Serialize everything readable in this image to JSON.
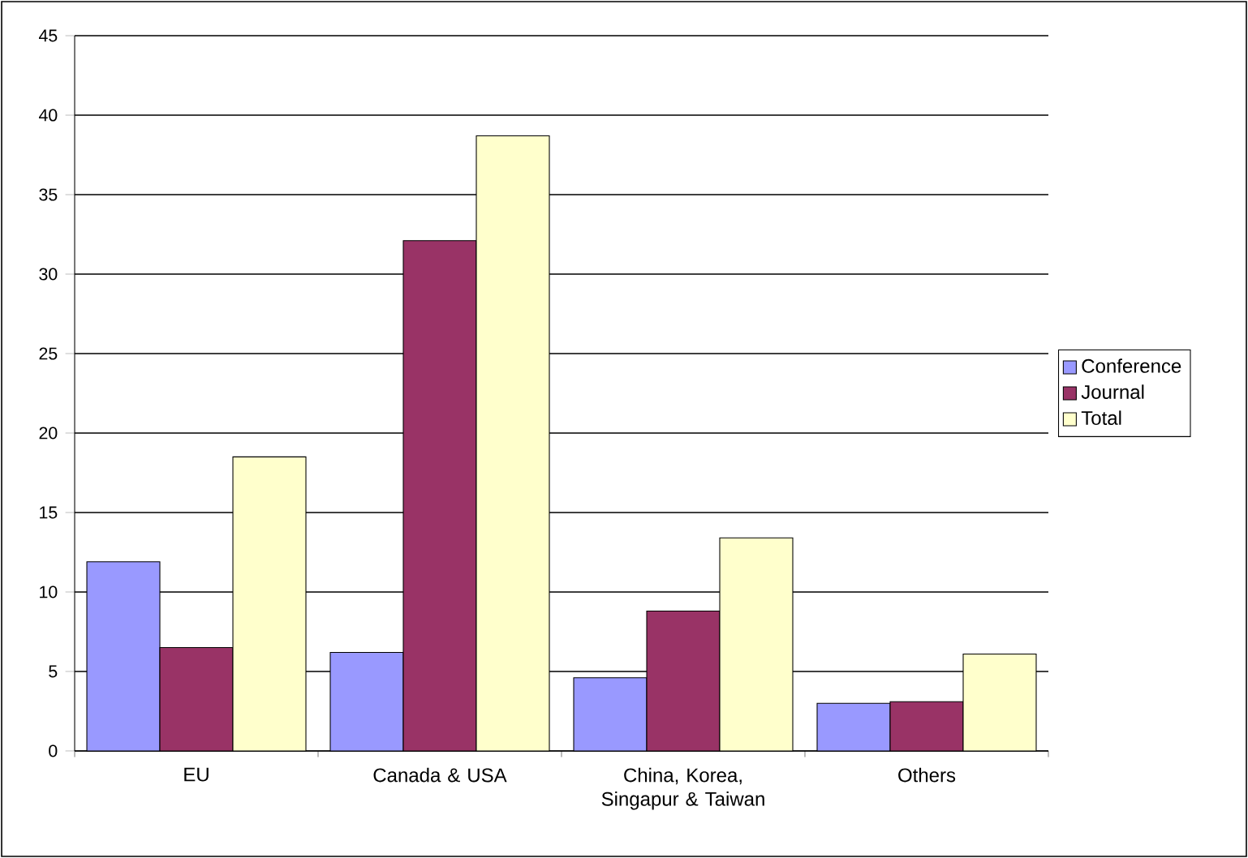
{
  "chart_data": {
    "type": "bar",
    "categories": [
      "EU",
      "Canada & USA",
      "China, Korea, Singapur & Taiwan",
      "Others"
    ],
    "series": [
      {
        "name": "Conference",
        "color": "#9999ff",
        "values": [
          11.9,
          6.2,
          4.6,
          3.0
        ]
      },
      {
        "name": "Journal",
        "color": "#993366",
        "values": [
          6.5,
          32.1,
          8.8,
          3.1
        ]
      },
      {
        "name": "Total",
        "color": "#ffffcc",
        "values": [
          18.5,
          38.7,
          13.4,
          6.1
        ]
      }
    ],
    "ylim": [
      0,
      45
    ],
    "yticks": [
      0,
      5,
      10,
      15,
      20,
      25,
      30,
      35,
      40,
      45
    ],
    "grid": "y",
    "legend": "right"
  }
}
